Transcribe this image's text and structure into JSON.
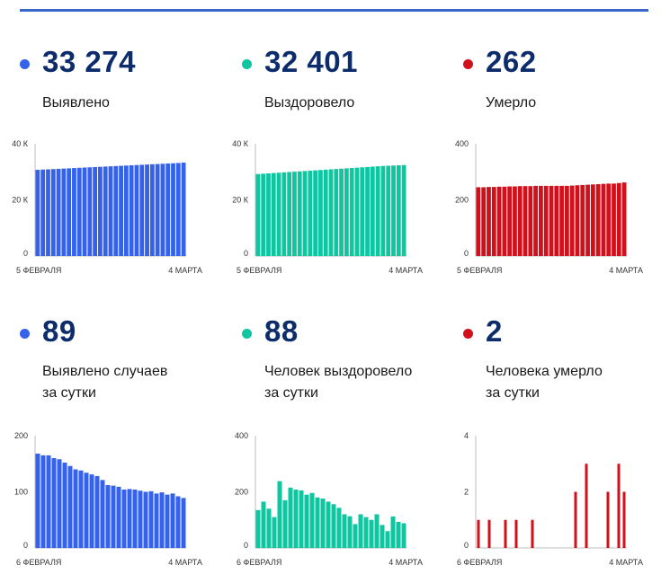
{
  "colors": {
    "blue": "#3562ea",
    "teal": "#0ec6a0",
    "red": "#d2101b",
    "accent": "#3a66c9"
  },
  "cards": [
    {
      "value": "33 274",
      "label_lines": [
        "Выявлено"
      ],
      "color": "blue"
    },
    {
      "value": "32 401",
      "label_lines": [
        "Выздоровело"
      ],
      "color": "teal"
    },
    {
      "value": "262",
      "label_lines": [
        "Умерло"
      ],
      "color": "red"
    },
    {
      "value": "89",
      "label_lines": [
        "Выявлено случаев",
        "за сутки"
      ],
      "color": "blue"
    },
    {
      "value": "88",
      "label_lines": [
        "Человек выздоровело",
        "за сутки"
      ],
      "color": "teal"
    },
    {
      "value": "2",
      "label_lines": [
        "Человека умерло",
        "за сутки"
      ],
      "color": "red"
    }
  ],
  "chart_data": [
    {
      "type": "bar",
      "title": "Выявлено",
      "color": "blue",
      "x_start_label": "5 ФЕВРАЛЯ",
      "x_end_label": "4 МАРТА",
      "y_ticks": [
        0,
        20000,
        40000
      ],
      "y_tick_labels": [
        "0",
        "20 К",
        "40 К"
      ],
      "ylim": [
        0,
        40000
      ],
      "values": [
        30700,
        30790,
        30880,
        30970,
        31060,
        31150,
        31240,
        31330,
        31420,
        31510,
        31600,
        31690,
        31780,
        31870,
        31960,
        32050,
        32140,
        32230,
        32320,
        32410,
        32500,
        32590,
        32680,
        32770,
        32860,
        32950,
        33040,
        33130,
        33274
      ]
    },
    {
      "type": "bar",
      "title": "Выздоровело",
      "color": "teal",
      "x_start_label": "5 ФЕВРАЛЯ",
      "x_end_label": "4 МАРТА",
      "y_ticks": [
        0,
        20000,
        40000
      ],
      "y_tick_labels": [
        "0",
        "20 К",
        "40 К"
      ],
      "ylim": [
        0,
        40000
      ],
      "values": [
        29200,
        29320,
        29440,
        29560,
        29680,
        29800,
        29920,
        30040,
        30160,
        30280,
        30400,
        30520,
        30640,
        30760,
        30880,
        31000,
        31120,
        31240,
        31360,
        31480,
        31600,
        31720,
        31840,
        31960,
        32080,
        32160,
        32230,
        32313,
        32401
      ]
    },
    {
      "type": "bar",
      "title": "Умерло",
      "color": "red",
      "x_start_label": "5 ФЕВРАЛЯ",
      "x_end_label": "4 МАРТА",
      "y_ticks": [
        0,
        200,
        400
      ],
      "y_tick_labels": [
        "0",
        "200",
        "400"
      ],
      "ylim": [
        0,
        400
      ],
      "values": [
        245,
        245,
        246,
        246,
        247,
        247,
        248,
        248,
        249,
        249,
        249,
        250,
        250,
        250,
        250,
        250,
        250,
        250,
        251,
        252,
        253,
        254,
        255,
        256,
        257,
        258,
        258,
        260,
        262
      ]
    },
    {
      "type": "bar",
      "title": "Выявлено случаев за сутки",
      "color": "blue",
      "x_start_label": "6 ФЕВРАЛЯ",
      "x_end_label": "4 МАРТА",
      "y_ticks": [
        0,
        100,
        200
      ],
      "y_tick_labels": [
        "0",
        "100",
        "200"
      ],
      "ylim": [
        0,
        200
      ],
      "values": [
        168,
        165,
        165,
        160,
        158,
        152,
        146,
        140,
        138,
        134,
        131,
        128,
        121,
        112,
        111,
        109,
        104,
        105,
        104,
        102,
        100,
        101,
        97,
        99,
        95,
        97,
        92,
        89
      ]
    },
    {
      "type": "bar",
      "title": "Человек выздоровело за сутки",
      "color": "teal",
      "x_start_label": "6 ФЕВРАЛЯ",
      "x_end_label": "4 МАРТА",
      "y_ticks": [
        0,
        200,
        400
      ],
      "y_tick_labels": [
        "0",
        "200",
        "400"
      ],
      "ylim": [
        0,
        400
      ],
      "values": [
        135,
        165,
        140,
        110,
        238,
        170,
        215,
        208,
        205,
        190,
        196,
        180,
        176,
        165,
        156,
        143,
        120,
        113,
        85,
        120,
        110,
        100,
        120,
        82,
        60,
        112,
        93,
        88
      ]
    },
    {
      "type": "bar",
      "title": "Человека умерло за сутки",
      "color": "red",
      "x_start_label": "6 ФЕВРАЛЯ",
      "x_end_label": "4 МАРТА",
      "y_ticks": [
        0,
        2,
        4
      ],
      "y_tick_labels": [
        "0",
        "2",
        "4"
      ],
      "ylim": [
        0,
        4
      ],
      "values": [
        1,
        0,
        1,
        0,
        0,
        1,
        0,
        1,
        0,
        0,
        1,
        0,
        0,
        0,
        0,
        0,
        0,
        0,
        2,
        0,
        3,
        0,
        0,
        0,
        2,
        0,
        3,
        2
      ]
    }
  ]
}
